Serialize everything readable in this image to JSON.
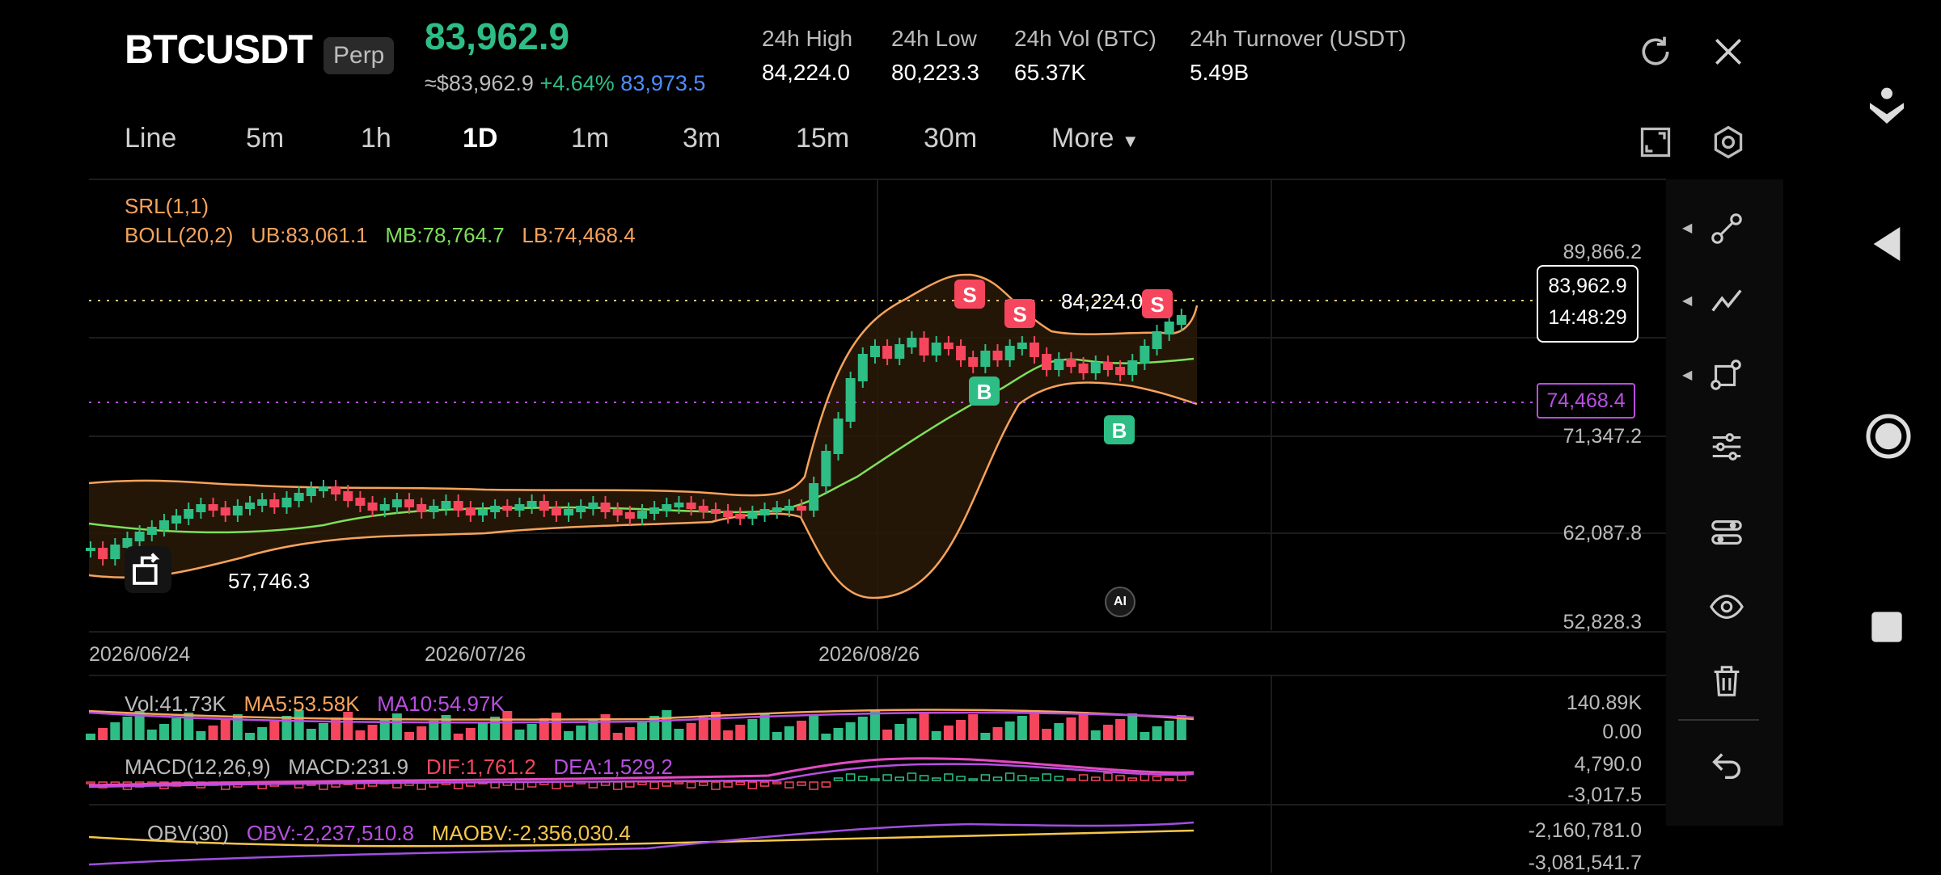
{
  "header": {
    "symbol": "BTCUSDT",
    "badge": "Perp",
    "price": "83,962.9",
    "approx": "≈$83,962.9",
    "change": "+4.64%",
    "mark": "83,973.5",
    "stats": [
      {
        "label": "24h High",
        "value": "84,224.0"
      },
      {
        "label": "24h Low",
        "value": "80,223.3"
      },
      {
        "label": "24h Vol (BTC)",
        "value": "65.37K"
      },
      {
        "label": "24h Turnover (USDT)",
        "value": "5.49B"
      }
    ]
  },
  "tabs": [
    "Line",
    "5m",
    "1h",
    "1D",
    "1m",
    "3m",
    "15m",
    "30m",
    "More"
  ],
  "active_tab": "1D",
  "main": {
    "srl": "SRL(1,1)",
    "boll": "BOLL(20,2)",
    "ub": "UB:83,061.1",
    "mb": "MB:78,764.7",
    "lb": "LB:74,468.4",
    "axis": [
      "89,866.2",
      "71,347.2",
      "62,087.8",
      "52,828.3"
    ],
    "dates": [
      "2026/06/24",
      "2026/07/26",
      "2026/08/26"
    ],
    "high_label": "84,224.0",
    "low_label": "57,746.3",
    "cur_price": "83,962.9",
    "countdown": "14:48:29",
    "lb_tag": "74,468.4",
    "signals": [
      "S",
      "S",
      "S",
      "B",
      "B"
    ],
    "ai": "AI"
  },
  "volume": {
    "vol": "Vol:41.73K",
    "ma5": "MA5:53.58K",
    "ma10": "MA10:54.97K",
    "axis": [
      "140.89K",
      "0.00"
    ]
  },
  "macd": {
    "name": "MACD(12,26,9)",
    "macd": "MACD:231.9",
    "dif": "DIF:1,761.2",
    "dea": "DEA:1,529.2",
    "axis": [
      "4,790.0",
      "-3,017.5"
    ]
  },
  "obv": {
    "name": "OBV(30)",
    "obv": "OBV:-2,237,510.8",
    "maobv": "MAOBV:-2,356,030.4",
    "axis": [
      "-2,160,781.0",
      "-3,081,541.7"
    ]
  },
  "colors": {
    "up": "#2ebd85",
    "down": "#f6465d",
    "boll": "#f7a35c",
    "mb": "#7ee05a",
    "purple": "#b84fe0"
  },
  "chart_data": {
    "type": "candlestick",
    "ylim": [
      52828.3,
      89866.2
    ],
    "x": [
      "2026/06/24",
      "2026/07/26",
      "2026/08/26"
    ],
    "boll_ub": 83061.1,
    "boll_mb": 78764.7,
    "boll_lb": 74468.4,
    "last": 83962.9,
    "high": 84224.0,
    "low": 57746.3
  }
}
